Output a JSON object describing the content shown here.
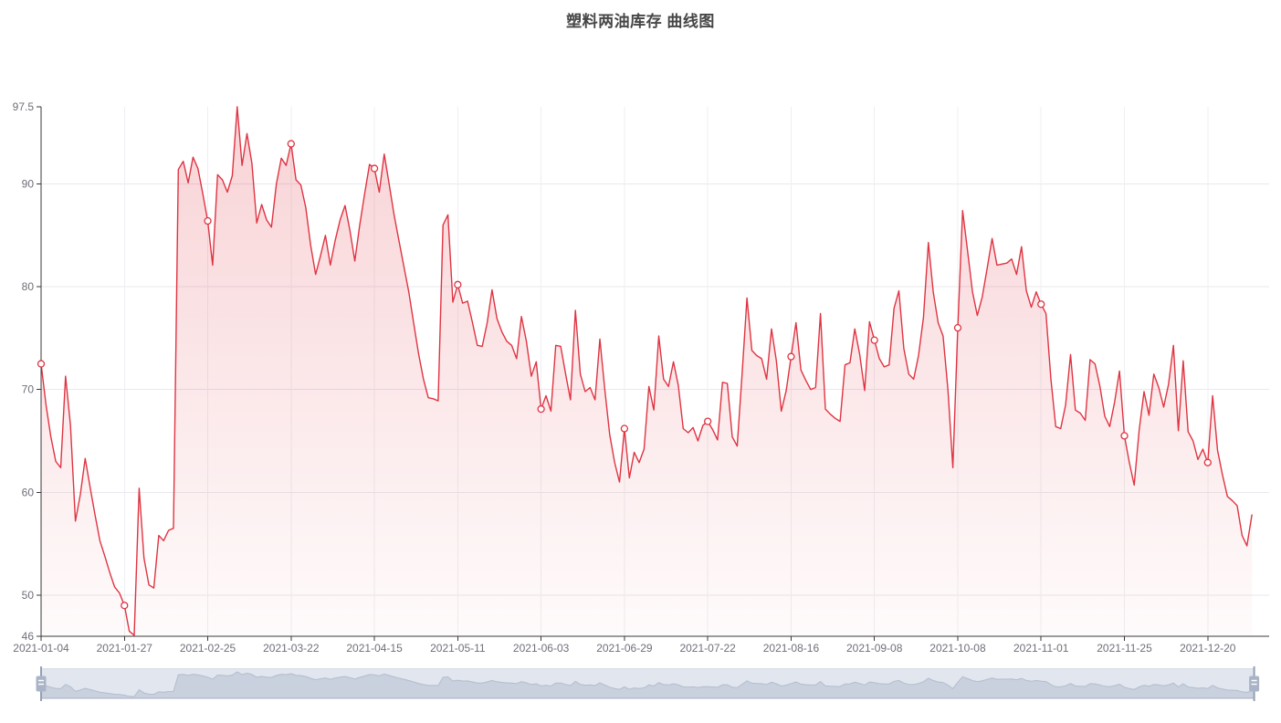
{
  "app": {
    "title": "塑料两油库存 曲线图"
  },
  "chart_data": {
    "type": "area",
    "title": "塑料两油库存 曲线图",
    "legend_position": "none",
    "grid": true,
    "ylim": [
      46,
      97.5
    ],
    "y_ticks": [
      97.5,
      90,
      80,
      70,
      60,
      50,
      46
    ],
    "x_tick_labels": [
      "2021-01-04",
      "2021-01-27",
      "2021-02-25",
      "2021-03-22",
      "2021-04-15",
      "2021-05-11",
      "2021-06-03",
      "2021-06-29",
      "2021-07-22",
      "2021-08-16",
      "2021-09-08",
      "2021-10-08",
      "2021-11-01",
      "2021-11-25",
      "2021-12-20"
    ],
    "points_per_tick": 17,
    "marker_values_at_ticks": [
      72.5,
      49.0,
      86.4,
      93.9,
      91.5,
      78.4,
      69.4,
      61.4,
      66.1,
      76.5,
      73.0,
      87.4,
      77.4,
      62.9,
      69.4
    ],
    "values": [
      72.5,
      68.5,
      65.4,
      63,
      62.4,
      71.3,
      66.5,
      57.2,
      59.8,
      63.3,
      60.5,
      57.8,
      55.3,
      53.8,
      52.2,
      50.8,
      50.2,
      49,
      46.5,
      46.1,
      60.4,
      53.6,
      51,
      50.7,
      55.8,
      55.3,
      56.3,
      56.5,
      91.4,
      92.2,
      90.1,
      92.6,
      91.5,
      89,
      86.4,
      82.1,
      90.9,
      90.4,
      89.2,
      90.8,
      97.5,
      91.8,
      94.9,
      92,
      86.2,
      88,
      86.5,
      85.8,
      90,
      92.5,
      91.8,
      93.9,
      90.4,
      89.9,
      87.7,
      84,
      81.2,
      83,
      85,
      82.1,
      84.5,
      86.5,
      87.9,
      85.5,
      82.5,
      86,
      89,
      91.9,
      91.5,
      89.2,
      92.9,
      90,
      87,
      84.5,
      82,
      79.5,
      76.5,
      73.5,
      71,
      69.2,
      69.1,
      68.9,
      86,
      87,
      78.5,
      80.2,
      78.4,
      78.6,
      76.5,
      74.3,
      74.2,
      76.5,
      79.7,
      76.9,
      75.6,
      74.7,
      74.3,
      73,
      77.1,
      74.7,
      71.3,
      72.7,
      68.1,
      69.4,
      67.9,
      74.3,
      74.2,
      71.5,
      69,
      77.7,
      71.5,
      69.8,
      70.2,
      69,
      74.9,
      70,
      65.6,
      62.9,
      61,
      66.2,
      61.4,
      63.9,
      62.9,
      64.2,
      70.3,
      68,
      75.2,
      71,
      70.3,
      72.7,
      70.4,
      66.2,
      65.8,
      66.3,
      65,
      66.5,
      66.9,
      66.1,
      65.1,
      70.7,
      70.6,
      65.4,
      64.5,
      71.4,
      78.9,
      73.8,
      73.3,
      73,
      71,
      75.9,
      72.8,
      67.9,
      69.9,
      73.2,
      76.5,
      71.9,
      70.9,
      70,
      70.2,
      77.4,
      68.1,
      67.6,
      67.2,
      66.9,
      72.4,
      72.6,
      75.9,
      73.4,
      69.9,
      76.6,
      74.8,
      73,
      72.2,
      72.4,
      77.9,
      79.6,
      74,
      71.5,
      71,
      73.3,
      77,
      84.3,
      79.5,
      76.5,
      75.2,
      70,
      62.4,
      76,
      87.4,
      83.5,
      79.5,
      77.2,
      79,
      81.8,
      84.7,
      82.1,
      82.2,
      82.3,
      82.7,
      81.2,
      83.9,
      79.6,
      78,
      79.5,
      78.3,
      77.4,
      71,
      66.4,
      66.2,
      68.5,
      73.4,
      68,
      67.7,
      67,
      72.9,
      72.5,
      70.3,
      67.4,
      66.4,
      68.8,
      71.8,
      65.5,
      62.9,
      60.7,
      66,
      69.8,
      67.5,
      71.5,
      70.2,
      68.3,
      70.5,
      74.3,
      66,
      72.8,
      65.9,
      65,
      63.2,
      64.2,
      62.9,
      69.4,
      64.1,
      61.7,
      59.6,
      59.2,
      58.7,
      55.8,
      54.8,
      57.8
    ],
    "colors": {
      "line": "#df3442",
      "marker_fill": "#ffffff",
      "area_top": "rgba(223,52,66,0.22)",
      "area_bottom": "rgba(223,52,66,0.02)",
      "axis_line": "#383838",
      "axis_label": "#6e7079",
      "split_line": "#e8e9ee",
      "split_line_vertical": "#edeff3",
      "title": "#464646"
    }
  },
  "datazoom": {
    "type": "slider",
    "range_start": "full-left",
    "range_end": "full-right",
    "colors": {
      "track_bg": "#f2f4f8",
      "filler": "rgba(167,183,204,0.22)",
      "border": "#d7dce4",
      "shadow_fill": "#d3d9e4",
      "shadow_edge": "#b6bfcd",
      "handle": "#a9b5c7",
      "handle_stem": "#92a0b5",
      "handle_slit": "#ffffff"
    }
  }
}
